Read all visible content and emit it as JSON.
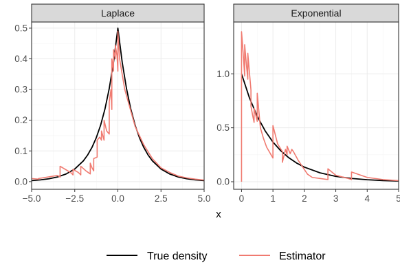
{
  "chart_data": {
    "type": "line",
    "xlabel": "x",
    "ylabel": "",
    "legend": {
      "position": "bottom",
      "entries": [
        {
          "name": "True density",
          "color": "#000000"
        },
        {
          "name": "Estimator",
          "color": "#f07a70"
        }
      ]
    },
    "panels": [
      {
        "title": "Laplace",
        "xlim": [
          -5,
          5
        ],
        "ylim": [
          -0.025,
          0.52
        ],
        "x_ticks": [
          -5,
          -2.5,
          0,
          2.5,
          5
        ],
        "x_tick_labels": [
          "−5.0",
          "−2.5",
          "0.0",
          "2.5",
          "5.0"
        ],
        "y_ticks": [
          0,
          0.1,
          0.2,
          0.3,
          0.4,
          0.5
        ],
        "y_tick_labels": [
          "0.0",
          "0.1",
          "0.2",
          "0.3",
          "0.4",
          "0.5"
        ],
        "series": [
          {
            "name": "True density",
            "x": [
              -5,
              -4.5,
              -4,
              -3.5,
              -3,
              -2.5,
              -2,
              -1.75,
              -1.5,
              -1.25,
              -1,
              -0.75,
              -0.5,
              -0.25,
              0,
              0.25,
              0.5,
              0.75,
              1,
              1.25,
              1.5,
              1.75,
              2,
              2.5,
              3,
              3.5,
              4,
              4.5,
              5
            ],
            "y": [
              0.0034,
              0.0056,
              0.0092,
              0.0151,
              0.0249,
              0.041,
              0.0677,
              0.0869,
              0.1116,
              0.1433,
              0.1839,
              0.2362,
              0.3033,
              0.3894,
              0.5,
              0.3894,
              0.3033,
              0.2362,
              0.1839,
              0.1433,
              0.1116,
              0.0869,
              0.0677,
              0.041,
              0.0249,
              0.0151,
              0.0092,
              0.0056,
              0.0034
            ]
          },
          {
            "name": "Estimator",
            "x": [
              -5,
              -4.6,
              -4.6,
              -3.5,
              -3.35,
              -3.35,
              -2.9,
              -2.7,
              -2.6,
              -2.6,
              -2.3,
              -2.15,
              -2.15,
              -1.85,
              -1.6,
              -1.6,
              -1.5,
              -1.4,
              -1.4,
              -1.2,
              -1.2,
              -1.05,
              -0.95,
              -0.95,
              -0.8,
              -0.8,
              -0.65,
              -0.5,
              -0.5,
              -0.4,
              -0.35,
              -0.35,
              -0.25,
              -0.25,
              -0.15,
              -0.15,
              -0.05,
              0,
              0,
              0.1,
              0.4,
              1,
              1.5,
              2,
              2.5,
              3,
              3.5,
              4,
              4.5,
              5
            ],
            "y": [
              0.01,
              0.008,
              0.01,
              0.02,
              0.015,
              0.05,
              0.035,
              0.028,
              0.022,
              0.04,
              0.03,
              0.022,
              0.05,
              0.035,
              0.025,
              0.06,
              0.045,
              0.035,
              0.075,
              0.08,
              0.135,
              0.145,
              0.135,
              0.165,
              0.135,
              0.2,
              0.165,
              0.155,
              0.26,
              0.3,
              0.235,
              0.4,
              0.36,
              0.43,
              0.4,
              0.445,
              0.41,
              0.36,
              0.49,
              0.4,
              0.3,
              0.18,
              0.12,
              0.075,
              0.045,
              0.03,
              0.018,
              0.012,
              0.008,
              0.005
            ]
          }
        ]
      },
      {
        "title": "Exponential",
        "xlim": [
          -0.25,
          5
        ],
        "ylim": [
          -0.07,
          1.48
        ],
        "x_ticks": [
          0,
          1,
          2,
          3,
          4,
          5
        ],
        "x_tick_labels": [
          "0",
          "1",
          "2",
          "3",
          "4",
          "5"
        ],
        "y_ticks": [
          0,
          0.5,
          1
        ],
        "y_tick_labels": [
          "0.0",
          "0.5",
          "1.0"
        ],
        "series": [
          {
            "name": "True density",
            "x": [
              0,
              0.25,
              0.5,
              0.75,
              1,
              1.25,
              1.5,
              1.75,
              2,
              2.5,
              3,
              3.5,
              4,
              4.5,
              5
            ],
            "y": [
              1,
              0.7788,
              0.6065,
              0.4724,
              0.3679,
              0.2865,
              0.2231,
              0.1738,
              0.1353,
              0.0821,
              0.0498,
              0.0302,
              0.0183,
              0.0111,
              0.0067
            ]
          },
          {
            "name": "Estimator",
            "x": [
              0,
              0,
              0.05,
              0.1,
              0.1,
              0.15,
              0.2,
              0.2,
              0.3,
              0.3,
              0.35,
              0.4,
              0.4,
              0.5,
              0.5,
              0.6,
              0.7,
              0.8,
              1,
              1,
              1.15,
              1.3,
              1.3,
              1.4,
              1.45,
              1.45,
              1.55,
              1.6,
              1.65,
              1.8,
              2.1,
              2.25,
              2.5,
              2.75,
              2.75,
              3,
              3.4,
              3.5,
              3.5,
              4,
              4.5,
              5
            ],
            "y": [
              0,
              1.39,
              1.2,
              0.98,
              1.27,
              1.1,
              0.95,
              1.19,
              0.85,
              0.7,
              0.62,
              0.55,
              0.68,
              0.56,
              0.82,
              0.5,
              0.4,
              0.32,
              0.22,
              0.52,
              0.35,
              0.28,
              0.18,
              0.3,
              0.25,
              0.33,
              0.26,
              0.3,
              0.28,
              0.2,
              0.07,
              0.04,
              0.03,
              0.02,
              0.12,
              0.06,
              0.03,
              0.02,
              0.09,
              0.04,
              0.02,
              0.01
            ]
          }
        ]
      }
    ]
  }
}
